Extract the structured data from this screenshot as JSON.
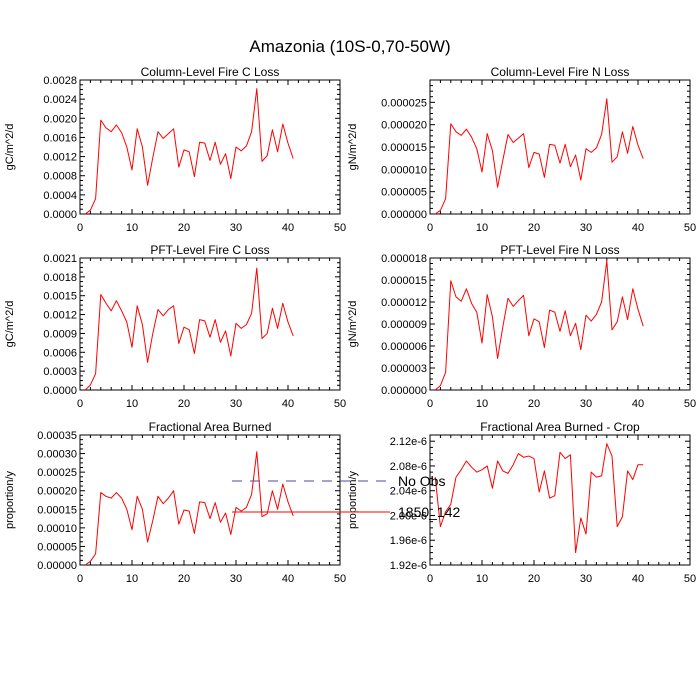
{
  "title": "Amazonia (10S-0,70-50W)",
  "colors": {
    "model": "#ff0000",
    "obs": "#4a4aa8",
    "axis": "#000000"
  },
  "legend": {
    "items": [
      {
        "label": "No Obs",
        "style": "dashed",
        "color": "#4a4aa8"
      },
      {
        "label": "1850_142",
        "style": "solid",
        "color": "#ff0000"
      }
    ]
  },
  "chart_data": [
    {
      "type": "line",
      "title": "Column-Level Fire C Loss",
      "ylabel": "gC/m^2/d",
      "xlim": [
        0,
        50
      ],
      "xticks": [
        "0",
        "10",
        "20",
        "30",
        "40",
        "50"
      ],
      "ylim": [
        0,
        0.0028
      ],
      "yticks": [
        "0.0000",
        "0.0004",
        "0.0008",
        "0.0012",
        "0.0016",
        "0.0020",
        "0.0024",
        "0.0028"
      ],
      "x": [
        1,
        2,
        3,
        4,
        5,
        6,
        7,
        8,
        9,
        10,
        11,
        12,
        13,
        14,
        15,
        16,
        17,
        18,
        19,
        20,
        21,
        22,
        23,
        24,
        25,
        26,
        27,
        28,
        29,
        30,
        31,
        32,
        33,
        34,
        35,
        36,
        37,
        38,
        39,
        40,
        41
      ],
      "series": [
        {
          "name": "1850_142",
          "values": [
            0.0,
            8e-05,
            0.00032,
            0.00196,
            0.0018,
            0.00172,
            0.00186,
            0.0017,
            0.0014,
            0.00092,
            0.00178,
            0.0014,
            0.0006,
            0.00118,
            0.00172,
            0.00158,
            0.00168,
            0.00178,
            0.00098,
            0.00134,
            0.0013,
            0.00078,
            0.0015,
            0.00148,
            0.00112,
            0.0015,
            0.00104,
            0.00126,
            0.00074,
            0.0014,
            0.00132,
            0.00142,
            0.00172,
            0.00262,
            0.0011,
            0.00122,
            0.00176,
            0.0013,
            0.00188,
            0.00148,
            0.00116
          ]
        }
      ]
    },
    {
      "type": "line",
      "title": "Column-Level Fire N Loss",
      "ylabel": "gN/m^2/d",
      "xlim": [
        0,
        50
      ],
      "xticks": [
        "0",
        "10",
        "20",
        "30",
        "40",
        "50"
      ],
      "ylim": [
        0,
        3e-05
      ],
      "yticks": [
        "0.000000",
        "0.000005",
        "0.000010",
        "0.000015",
        "0.000020",
        "0.000025"
      ],
      "x": [
        1,
        2,
        3,
        4,
        5,
        6,
        7,
        8,
        9,
        10,
        11,
        12,
        13,
        14,
        15,
        16,
        17,
        18,
        19,
        20,
        21,
        22,
        23,
        24,
        25,
        26,
        27,
        28,
        29,
        30,
        31,
        32,
        33,
        34,
        35,
        36,
        37,
        38,
        39,
        40,
        41
      ],
      "series": [
        {
          "name": "1850_142",
          "values": [
            0.0,
            8e-07,
            3.4e-06,
            2.02e-05,
            1.84e-05,
            1.76e-05,
            1.9e-05,
            1.72e-05,
            1.46e-05,
            9.4e-06,
            1.8e-05,
            1.42e-05,
            6e-06,
            1.2e-05,
            1.78e-05,
            1.6e-05,
            1.7e-05,
            1.8e-05,
            1.04e-05,
            1.38e-05,
            1.34e-05,
            8.2e-06,
            1.56e-05,
            1.54e-05,
            1.14e-05,
            1.56e-05,
            1.06e-05,
            1.32e-05,
            7.6e-06,
            1.46e-05,
            1.38e-05,
            1.48e-05,
            1.78e-05,
            2.58e-05,
            1.16e-05,
            1.28e-05,
            1.84e-05,
            1.36e-05,
            1.96e-05,
            1.54e-05,
            1.24e-05
          ]
        }
      ]
    },
    {
      "type": "line",
      "title": "PFT-Level Fire C Loss",
      "ylabel": "gC/m^2/d",
      "xlim": [
        0,
        50
      ],
      "xticks": [
        "0",
        "10",
        "20",
        "30",
        "40",
        "50"
      ],
      "ylim": [
        0,
        0.0021
      ],
      "yticks": [
        "0.0000",
        "0.0003",
        "0.0006",
        "0.0009",
        "0.0012",
        "0.0015",
        "0.0018",
        "0.0021"
      ],
      "x": [
        1,
        2,
        3,
        4,
        5,
        6,
        7,
        8,
        9,
        10,
        11,
        12,
        13,
        14,
        15,
        16,
        17,
        18,
        19,
        20,
        21,
        22,
        23,
        24,
        25,
        26,
        27,
        28,
        29,
        30,
        31,
        32,
        33,
        34,
        35,
        36,
        37,
        38,
        39,
        40,
        41
      ],
      "series": [
        {
          "name": "1850_142",
          "values": [
            0.0,
            8e-05,
            0.00026,
            0.00152,
            0.00138,
            0.00126,
            0.00142,
            0.00126,
            0.00108,
            0.00068,
            0.00134,
            0.00104,
            0.00044,
            0.0009,
            0.00128,
            0.00118,
            0.00128,
            0.00134,
            0.00074,
            0.001,
            0.00096,
            0.00058,
            0.00112,
            0.0011,
            0.00084,
            0.00112,
            0.00076,
            0.00094,
            0.00054,
            0.00106,
            0.00098,
            0.00104,
            0.00122,
            0.00194,
            0.00082,
            0.0009,
            0.0013,
            0.00098,
            0.00138,
            0.00108,
            0.00086
          ]
        }
      ]
    },
    {
      "type": "line",
      "title": "PFT-Level Fire N Loss",
      "ylabel": "gN/m^2/d",
      "xlim": [
        0,
        50
      ],
      "xticks": [
        "0",
        "10",
        "20",
        "30",
        "40",
        "50"
      ],
      "ylim": [
        0,
        1.8e-05
      ],
      "yticks": [
        "0.000000",
        "0.000003",
        "0.000006",
        "0.000009",
        "0.000012",
        "0.000015",
        "0.000018"
      ],
      "x": [
        1,
        2,
        3,
        4,
        5,
        6,
        7,
        8,
        9,
        10,
        11,
        12,
        13,
        14,
        15,
        16,
        17,
        18,
        19,
        20,
        21,
        22,
        23,
        24,
        25,
        26,
        27,
        28,
        29,
        30,
        31,
        32,
        33,
        34,
        35,
        36,
        37,
        38,
        39,
        40,
        41
      ],
      "series": [
        {
          "name": "1850_142",
          "values": [
            0.0,
            6e-07,
            2.4e-06,
            1.49e-05,
            1.27e-05,
            1.21e-05,
            1.38e-05,
            1.18e-05,
            1.06e-05,
            6.4e-06,
            1.3e-05,
            1e-05,
            4.3e-06,
            8.6e-06,
            1.25e-05,
            1.14e-05,
            1.22e-05,
            1.29e-05,
            7.4e-06,
            9.7e-06,
            9.3e-06,
            5.8e-06,
            1.09e-05,
            1.06e-05,
            8e-06,
            1.08e-05,
            7.4e-06,
            9.1e-06,
            5.5e-06,
            1.02e-05,
            9.4e-06,
            1.03e-05,
            1.2e-05,
            1.76e-05,
            8.2e-06,
            9.3e-06,
            1.27e-05,
            9.6e-06,
            1.38e-05,
            1.1e-05,
            8.7e-06
          ]
        }
      ]
    },
    {
      "type": "line",
      "title": "Fractional Area Burned",
      "ylabel": "proportion/y",
      "xlim": [
        0,
        50
      ],
      "xticks": [
        "0",
        "10",
        "20",
        "30",
        "40",
        "50"
      ],
      "ylim": [
        0,
        0.00035
      ],
      "yticks": [
        "0.00000",
        "0.00005",
        "0.00010",
        "0.00015",
        "0.00020",
        "0.00025",
        "0.00030",
        "0.00035"
      ],
      "x": [
        1,
        2,
        3,
        4,
        5,
        6,
        7,
        8,
        9,
        10,
        11,
        12,
        13,
        14,
        15,
        16,
        17,
        18,
        19,
        20,
        21,
        22,
        23,
        24,
        25,
        26,
        27,
        28,
        29,
        30,
        31,
        32,
        33,
        34,
        35,
        36,
        37,
        38,
        39,
        40,
        41
      ],
      "series": [
        {
          "name": "1850_142",
          "values": [
            0.0,
            1e-05,
            3e-05,
            0.000195,
            0.000185,
            0.00018,
            0.000195,
            0.00018,
            0.00015,
            9.5e-05,
            0.000185,
            0.00015,
            6.2e-05,
            0.00012,
            0.000185,
            0.000165,
            0.00018,
            0.0002,
            0.00011,
            0.000148,
            0.000145,
            8.5e-05,
            0.00017,
            0.000168,
            0.000125,
            0.000168,
            0.000115,
            0.00014,
            8.2e-05,
            0.000155,
            0.000145,
            0.000155,
            0.00019,
            0.000305,
            0.00013,
            0.000138,
            0.0002,
            0.00015,
            0.000218,
            0.00017,
            0.000132
          ]
        }
      ]
    },
    {
      "type": "line",
      "title": "Fractional Area Burned - Crop",
      "ylabel": "proportion/y",
      "xlim": [
        0,
        50
      ],
      "xticks": [
        "0",
        "10",
        "20",
        "30",
        "40",
        "50"
      ],
      "ylim": [
        1.92e-06,
        2.13e-06
      ],
      "yticks": [
        "1.92e-6",
        "1.96e-6",
        "2.00e-6",
        "2.04e-6",
        "2.08e-6",
        "2.12e-6"
      ],
      "x": [
        1,
        2,
        3,
        4,
        5,
        6,
        7,
        8,
        9,
        10,
        11,
        12,
        13,
        14,
        15,
        16,
        17,
        18,
        19,
        20,
        21,
        22,
        23,
        24,
        25,
        26,
        27,
        28,
        29,
        30,
        31,
        32,
        33,
        34,
        35,
        36,
        37,
        38,
        39,
        40,
        41
      ],
      "series": [
        {
          "name": "1850_142",
          "values": [
            2.062e-06,
            1.982e-06,
            2.006e-06,
            2.018e-06,
            2.062e-06,
            2.074e-06,
            2.088e-06,
            2.078e-06,
            2.07e-06,
            2.074e-06,
            2.08e-06,
            2.044e-06,
            2.088e-06,
            2.072e-06,
            2.068e-06,
            2.082e-06,
            2.1e-06,
            2.094e-06,
            2.096e-06,
            2.092e-06,
            2.038e-06,
            2.072e-06,
            2.028e-06,
            2.032e-06,
            2.102e-06,
            2.092e-06,
            2.098e-06,
            1.94e-06,
            1.996e-06,
            1.97e-06,
            2.07e-06,
            2.062e-06,
            2.064e-06,
            2.116e-06,
            2.096e-06,
            1.982e-06,
            1.998e-06,
            2.072e-06,
            2.058e-06,
            2.082e-06,
            2.082e-06
          ]
        }
      ]
    }
  ]
}
